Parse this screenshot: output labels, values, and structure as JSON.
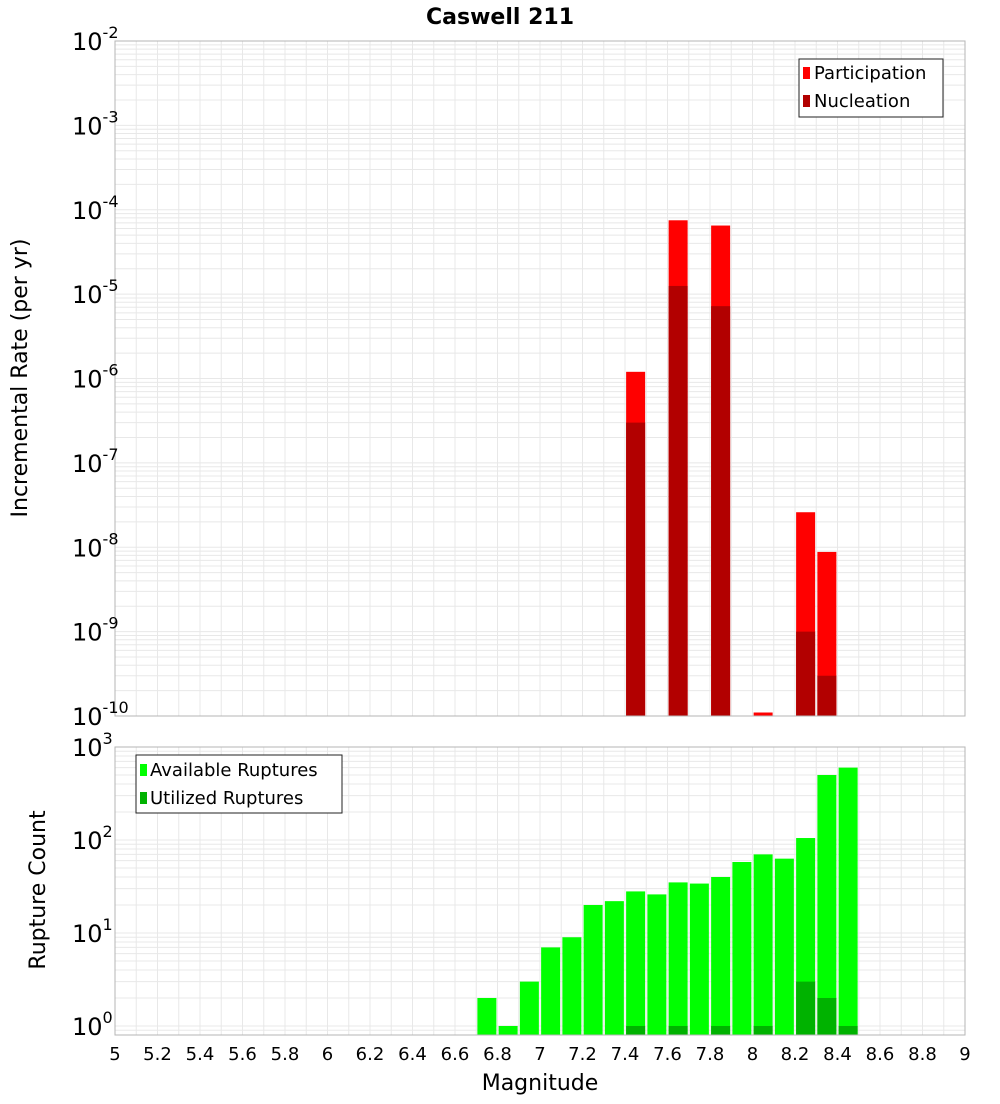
{
  "chart_data": [
    {
      "type": "bar",
      "title": "Caswell 211",
      "xlabel": "",
      "ylabel": "Incremental Rate (per yr)",
      "y_scale": "log",
      "ylim": [
        1e-10,
        0.01
      ],
      "xlim": [
        5,
        9
      ],
      "grid": true,
      "legend_position": "top-right",
      "series": [
        {
          "name": "Participation",
          "color": "#ff0000",
          "x": [
            7.45,
            7.65,
            7.85,
            8.05,
            8.25,
            8.35
          ],
          "values": [
            1.2e-06,
            7.5e-05,
            6.5e-05,
            1.1e-10,
            2.6e-08,
            8.8e-09
          ]
        },
        {
          "name": "Nucleation",
          "color": "#b20000",
          "x": [
            7.45,
            7.65,
            7.85,
            8.25,
            8.35
          ],
          "values": [
            3e-07,
            1.25e-05,
            7.2e-06,
            1e-09,
            3e-10
          ]
        }
      ]
    },
    {
      "type": "bar",
      "xlabel": "Magnitude",
      "ylabel": "Rupture Count",
      "y_scale": "log",
      "ylim": [
        0.8,
        1000
      ],
      "xlim": [
        5,
        9
      ],
      "grid": true,
      "legend_position": "top-left",
      "x_ticks": [
        "5",
        "5.2",
        "5.4",
        "5.6",
        "5.8",
        "6",
        "6.2",
        "6.4",
        "6.6",
        "6.8",
        "7",
        "7.2",
        "7.4",
        "7.6",
        "7.8",
        "8",
        "8.2",
        "8.4",
        "8.6",
        "8.8",
        "9"
      ],
      "series": [
        {
          "name": "Available Ruptures",
          "color": "#00ff00",
          "x": [
            6.75,
            6.85,
            6.95,
            7.05,
            7.15,
            7.25,
            7.35,
            7.45,
            7.55,
            7.65,
            7.75,
            7.85,
            7.95,
            8.05,
            8.15,
            8.25,
            8.35,
            8.45
          ],
          "values": [
            2,
            1,
            3,
            7,
            9,
            20,
            22,
            28,
            26,
            35,
            34,
            40,
            58,
            70,
            63,
            105,
            500,
            600
          ]
        },
        {
          "name": "Utilized Ruptures",
          "color": "#00b200",
          "x": [
            7.45,
            7.65,
            7.85,
            8.05,
            8.25,
            8.35,
            8.45
          ],
          "values": [
            1,
            1,
            1,
            1,
            3,
            2,
            1
          ]
        }
      ]
    }
  ]
}
